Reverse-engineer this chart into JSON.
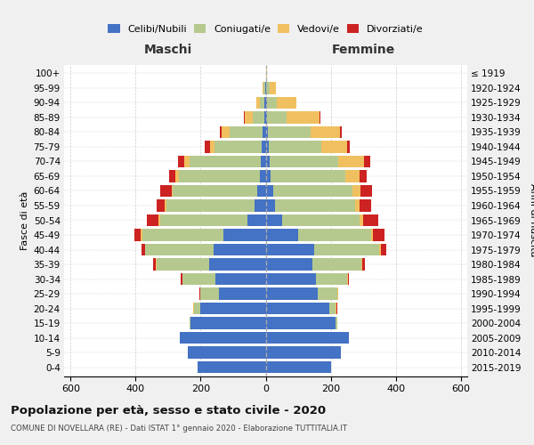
{
  "age_groups": [
    "0-4",
    "5-9",
    "10-14",
    "15-19",
    "20-24",
    "25-29",
    "30-34",
    "35-39",
    "40-44",
    "45-49",
    "50-54",
    "55-59",
    "60-64",
    "65-69",
    "70-74",
    "75-79",
    "80-84",
    "85-89",
    "90-94",
    "95-99",
    "100+"
  ],
  "birth_years": [
    "2015-2019",
    "2010-2014",
    "2005-2009",
    "2000-2004",
    "1995-1999",
    "1990-1994",
    "1985-1989",
    "1980-1984",
    "1975-1979",
    "1970-1974",
    "1965-1969",
    "1960-1964",
    "1955-1959",
    "1950-1954",
    "1945-1949",
    "1940-1944",
    "1935-1939",
    "1930-1934",
    "1925-1929",
    "1920-1924",
    "≤ 1919"
  ],
  "colors": {
    "celibe": "#4472c4",
    "coniugato": "#b5c98e",
    "vedovo": "#f0c060",
    "divorziato": "#cc2222"
  },
  "maschi": {
    "celibe": [
      210,
      240,
      265,
      230,
      200,
      145,
      155,
      175,
      160,
      130,
      55,
      35,
      25,
      18,
      15,
      12,
      10,
      5,
      3,
      2,
      0
    ],
    "coniugato": [
      0,
      0,
      0,
      5,
      20,
      55,
      100,
      160,
      210,
      250,
      270,
      270,
      260,
      250,
      220,
      145,
      100,
      35,
      15,
      5,
      0
    ],
    "vedovo": [
      0,
      0,
      0,
      0,
      2,
      2,
      2,
      2,
      2,
      5,
      5,
      5,
      5,
      10,
      15,
      15,
      25,
      25,
      10,
      3,
      0
    ],
    "divorziato": [
      0,
      0,
      0,
      0,
      2,
      2,
      5,
      8,
      10,
      20,
      35,
      25,
      35,
      20,
      20,
      15,
      5,
      2,
      0,
      0,
      0
    ]
  },
  "femmine": {
    "celibe": [
      200,
      230,
      255,
      215,
      195,
      160,
      155,
      145,
      150,
      100,
      50,
      30,
      22,
      15,
      12,
      10,
      8,
      5,
      4,
      2,
      0
    ],
    "coniugato": [
      0,
      0,
      0,
      5,
      20,
      60,
      95,
      150,
      200,
      225,
      240,
      245,
      245,
      230,
      210,
      160,
      130,
      60,
      30,
      10,
      2
    ],
    "vedovo": [
      0,
      0,
      0,
      0,
      2,
      2,
      2,
      2,
      5,
      5,
      10,
      15,
      25,
      45,
      80,
      80,
      90,
      100,
      60,
      20,
      2
    ],
    "divorziato": [
      0,
      0,
      0,
      0,
      2,
      2,
      5,
      8,
      15,
      35,
      45,
      35,
      35,
      20,
      20,
      10,
      5,
      2,
      0,
      0,
      0
    ]
  },
  "title": "Popolazione per età, sesso e stato civile - 2020",
  "subtitle": "COMUNE DI NOVELLARA (RE) - Dati ISTAT 1° gennaio 2020 - Elaborazione TUTTITALIA.IT",
  "xlabel_left": "Maschi",
  "xlabel_right": "Femmine",
  "ylabel_left": "Fasce di età",
  "ylabel_right": "Anni di nascita",
  "xlim": 620,
  "bg_color": "#f0f0f0",
  "plot_bg_color": "#ffffff"
}
